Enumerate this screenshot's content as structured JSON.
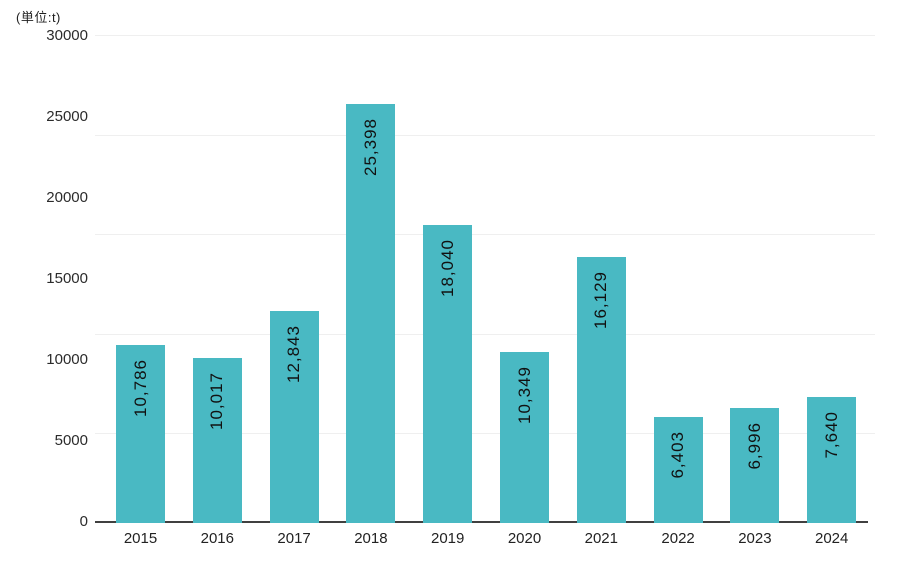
{
  "unit_label": "(単位:t)",
  "colors": {
    "bar": "#49b9c3",
    "bar_value_label": "#111111",
    "axis_line": "#404040",
    "gridline": "#efefef",
    "tick_label": "#2b2b2b"
  },
  "chart_data": {
    "type": "bar",
    "title": "",
    "xlabel": "",
    "ylabel": "(単位:t)",
    "categories": [
      "2015",
      "2016",
      "2017",
      "2018",
      "2019",
      "2020",
      "2021",
      "2022",
      "2023",
      "2024"
    ],
    "values": [
      10786,
      10017,
      12843,
      25398,
      18040,
      10349,
      16129,
      6403,
      6996,
      7640
    ],
    "value_labels": [
      "10,786",
      "10,017",
      "12,843",
      "25,398",
      "18,040",
      "10,349",
      "16,129",
      "6,403",
      "6,996",
      "7,640"
    ],
    "ylim": [
      0,
      30000
    ],
    "ytick_labels": [
      "30000",
      "25000",
      "20000",
      "15000",
      "10000",
      "5000",
      "0"
    ],
    "grid": true,
    "legend": false,
    "value_label_style": "rotated vertical, reads bottom to top, inside bar near top"
  }
}
